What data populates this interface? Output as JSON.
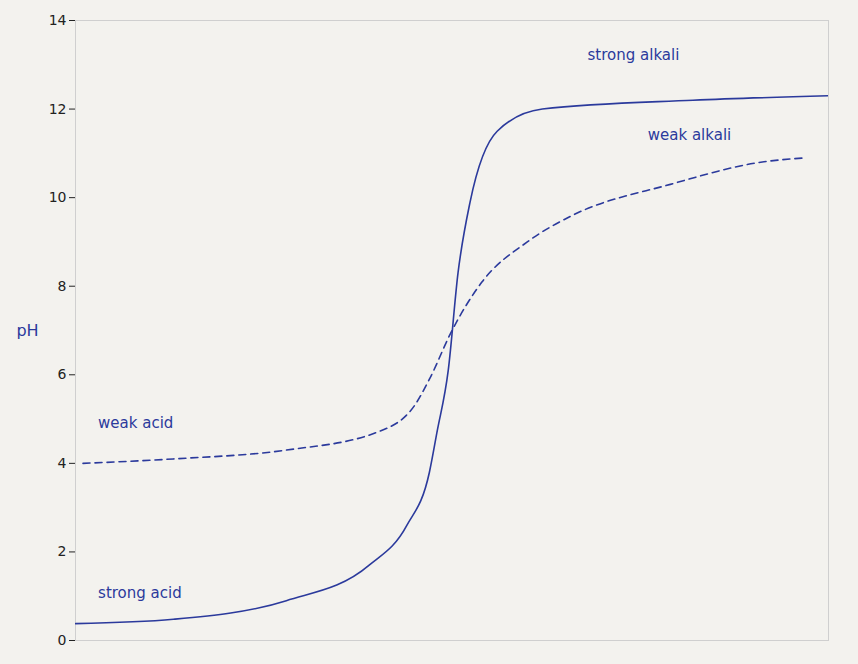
{
  "chart_data": {
    "type": "line",
    "y_label": "pH",
    "xlim": [
      0,
      100
    ],
    "ylim": [
      0,
      14
    ],
    "yticks": [
      0,
      2,
      4,
      6,
      8,
      10,
      12,
      14
    ],
    "tick_labels": "y",
    "grid": false,
    "series": [
      {
        "color": "#2b3a9c",
        "line_style": "solid",
        "x": [
          0,
          13,
          28,
          39,
          44,
          47,
          48,
          49.5,
          50.8,
          52.4,
          56,
          62,
          82,
          100
        ],
        "values": [
          0.38,
          0.48,
          0.9,
          1.7,
          2.6,
          3.8,
          4.7,
          6.1,
          8.3,
          9.9,
          11.5,
          12,
          12.2,
          12.3
        ]
      },
      {
        "color": "#2b3a9c",
        "line_style": "dashed",
        "x": [
          1,
          13,
          28,
          40,
          45,
          47,
          50,
          54,
          60,
          66,
          79,
          91,
          97
        ],
        "values": [
          4,
          4.1,
          4.3,
          4.7,
          5.3,
          5.9,
          7.0,
          8.1,
          9.0,
          9.6,
          10.3,
          10.8,
          10.9
        ]
      }
    ],
    "annotations": [
      {
        "text": "strong alkali",
        "x": 68,
        "y": 13.1
      },
      {
        "text": "weak alkali",
        "x": 76,
        "y": 11.3
      },
      {
        "text": "weak acid",
        "x": 3,
        "y": 4.8
      },
      {
        "text": "strong acid",
        "x": 3,
        "y": 0.95
      }
    ]
  }
}
